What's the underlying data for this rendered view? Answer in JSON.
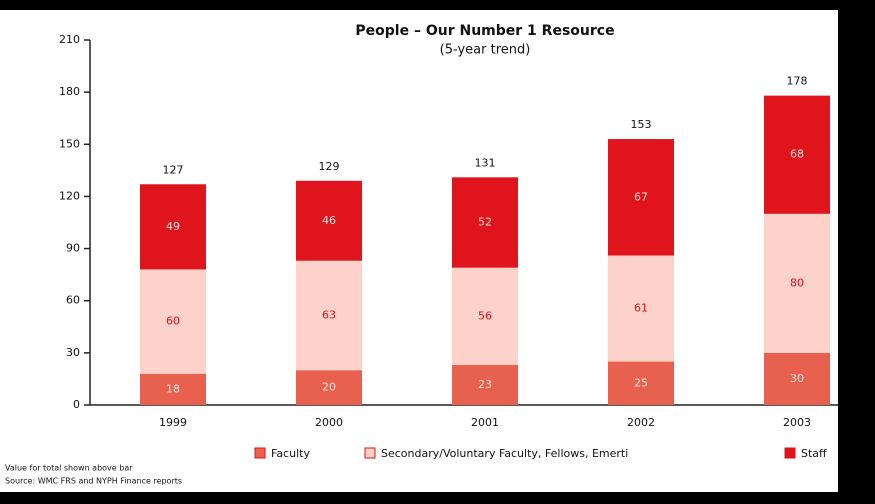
{
  "chart_data": {
    "type": "stacked_bar",
    "title": "People – Our Number 1 Resource",
    "subtitle": "(5-year trend)",
    "categories": [
      "1999",
      "2000",
      "2001",
      "2002",
      "2003"
    ],
    "series": [
      {
        "name": "Faculty",
        "color": "#e8604e",
        "label_color": "#fde0da",
        "values": [
          18,
          20,
          23,
          25,
          30
        ]
      },
      {
        "name": "Secondary/Voluntary Faculty, Fellows, Emerti",
        "color": "#fcd2ca",
        "label_color": "#e0101a",
        "values": [
          60,
          63,
          56,
          61,
          80
        ]
      },
      {
        "name": "Staff",
        "color": "#e0141c",
        "label_color": "#fde0da",
        "values": [
          49,
          46,
          52,
          67,
          68
        ]
      }
    ],
    "totals": [
      127,
      129,
      131,
      153,
      178
    ],
    "ylim": [
      0,
      210
    ],
    "yticks": [
      0,
      30,
      60,
      90,
      120,
      150,
      180,
      210
    ],
    "grid": false,
    "footnotes": [
      "Value for total shown above bar",
      "Source: WMC FRS and NYPH Finance reports"
    ]
  }
}
